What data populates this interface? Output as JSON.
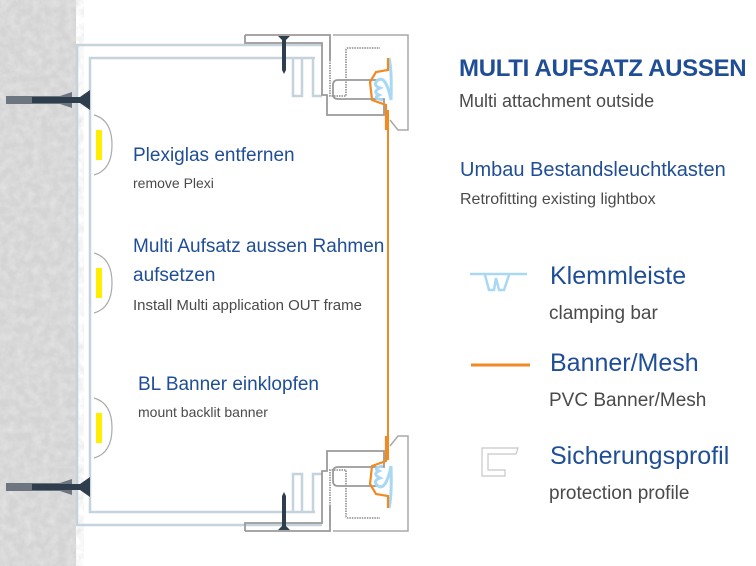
{
  "title": "MULTI AUFSATZ AUSSEN",
  "subtitle": "Multi attachment outside",
  "context": {
    "de": "Umbau Bestandsleuchtkasten",
    "en": "Retrofitting existing lightbox"
  },
  "steps": [
    {
      "de": "Plexiglas entfernen",
      "en": "remove Plexi"
    },
    {
      "de_line1": "Multi Aufsatz aussen Rahmen",
      "de_line2": "aufsetzen",
      "en": "Install Multi application OUT frame"
    },
    {
      "de": "BL Banner einklopfen",
      "en": "mount backlit banner"
    }
  ],
  "legend": [
    {
      "de": "Klemmleiste",
      "en": "clamping bar",
      "icon": "clamping-bar-icon",
      "color": "#a9d8f2"
    },
    {
      "de": "Banner/Mesh",
      "en": "PVC Banner/Mesh",
      "icon": "banner-line-icon",
      "color": "#f08a24"
    },
    {
      "de": "Sicherungsprofil",
      "en": "protection profile",
      "icon": "protection-profile-icon",
      "color": "#c8c8c8"
    }
  ],
  "colors": {
    "heading": "#1f4e96",
    "banner": "#f08a24",
    "frame": "#c5d3dc",
    "profile": "#9a9a9a",
    "led": "#ffee00",
    "wall": "#d2d2d2"
  }
}
